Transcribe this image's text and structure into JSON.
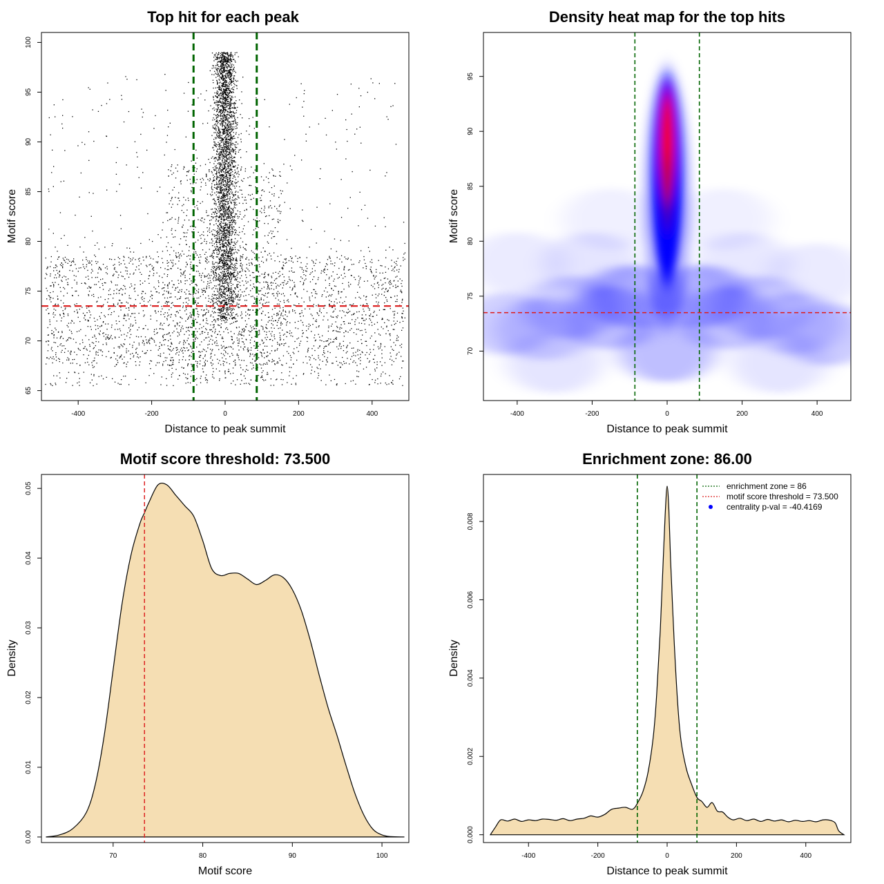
{
  "colors": {
    "background": "#ffffff",
    "points": "#000000",
    "enrichment_line": "#006400",
    "threshold_line": "#dd2222",
    "density_fill": "#f5deb3",
    "heat_low": "#ffffff",
    "heat_mid": "#0000ff",
    "heat_high": "#ff0000",
    "legend_point": "#0000ff"
  },
  "chart_data": [
    {
      "id": "scatter",
      "type": "scatter",
      "title": "Top hit for each peak",
      "xlabel": "Distance to peak summit",
      "ylabel": "Motif score",
      "xlim": [
        -500,
        500
      ],
      "ylim": [
        64,
        101
      ],
      "xticks": [
        -400,
        -200,
        0,
        200,
        400
      ],
      "yticks": [
        65,
        70,
        75,
        80,
        85,
        90,
        95,
        100
      ],
      "enrichment_zone": [
        -86,
        86
      ],
      "threshold": 73.5,
      "point_groups": [
        {
          "name": "central",
          "count": 3200,
          "x_mean": 0,
          "x_sd": 17,
          "y_range": [
            72,
            99
          ]
        },
        {
          "name": "shoulder",
          "count": 900,
          "x_range": [
            -160,
            160
          ],
          "y_range": [
            66,
            88
          ]
        },
        {
          "name": "background",
          "count": 2700,
          "x_range": [
            -490,
            490
          ],
          "y_range": [
            65.5,
            80
          ]
        },
        {
          "name": "background-high",
          "count": 250,
          "x_range": [
            -490,
            490
          ],
          "y_range": [
            80,
            97
          ]
        }
      ]
    },
    {
      "id": "heatmap",
      "type": "heatmap",
      "title": "Density heat map for the top hits",
      "xlabel": "Distance to peak summit",
      "ylabel": "Motif score",
      "xlim": [
        -490,
        490
      ],
      "ylim": [
        65.5,
        99
      ],
      "xticks": [
        -400,
        -200,
        0,
        200,
        400
      ],
      "yticks": [
        70,
        75,
        80,
        85,
        90,
        95
      ],
      "enrichment_zone": [
        -86,
        86
      ],
      "threshold": 73.5,
      "peak_center": {
        "x": 0,
        "y": 88.5
      },
      "color_scale": [
        "white",
        "blue",
        "red"
      ]
    },
    {
      "id": "score-density",
      "type": "area",
      "title": "Motif score threshold: 73.500",
      "xlabel": "Motif score",
      "ylabel": "Density",
      "xlim": [
        62,
        103
      ],
      "ylim": [
        -0.0008,
        0.052
      ],
      "xticks": [
        70,
        80,
        90,
        100
      ],
      "yticks": [
        0.0,
        0.01,
        0.02,
        0.03,
        0.04,
        0.05
      ],
      "ytick_labels": [
        "0.00",
        "0.01",
        "0.02",
        "0.03",
        "0.04",
        "0.05"
      ],
      "threshold": 73.5,
      "x": [
        62.5,
        64,
        65.5,
        67,
        68,
        69,
        70,
        71,
        72,
        73,
        73.5,
        74,
        75,
        76,
        77,
        78,
        79,
        80,
        81,
        82,
        83,
        84,
        85,
        86,
        87,
        88,
        89,
        90,
        91,
        92,
        93,
        94,
        95,
        96,
        97,
        98,
        99,
        100,
        101,
        102.5
      ],
      "y": [
        0.0,
        0.0003,
        0.0012,
        0.0035,
        0.0075,
        0.0145,
        0.024,
        0.0335,
        0.0405,
        0.045,
        0.0465,
        0.048,
        0.0505,
        0.0505,
        0.049,
        0.0475,
        0.046,
        0.0425,
        0.0385,
        0.0375,
        0.0378,
        0.0378,
        0.037,
        0.0362,
        0.0368,
        0.0376,
        0.0372,
        0.0355,
        0.0325,
        0.0282,
        0.0232,
        0.0185,
        0.0145,
        0.0102,
        0.0062,
        0.0031,
        0.0011,
        0.0003,
        5e-05,
        0.0
      ]
    },
    {
      "id": "distance-density",
      "type": "area",
      "title": "Enrichment zone: 86.00",
      "xlabel": "Distance to peak summit",
      "ylabel": "Density",
      "xlim": [
        -530,
        530
      ],
      "ylim": [
        -0.0002,
        0.0092
      ],
      "xticks": [
        -400,
        -200,
        0,
        200,
        400
      ],
      "yticks": [
        0.0,
        0.002,
        0.004,
        0.006,
        0.008
      ],
      "ytick_labels": [
        "0.000",
        "0.002",
        "0.004",
        "0.006",
        "0.008"
      ],
      "enrichment_zone": [
        -86,
        86
      ],
      "x": [
        -510,
        -495,
        -480,
        -460,
        -440,
        -420,
        -400,
        -380,
        -360,
        -340,
        -320,
        -300,
        -280,
        -260,
        -240,
        -220,
        -200,
        -180,
        -160,
        -140,
        -120,
        -100,
        -86,
        -70,
        -55,
        -40,
        -30,
        -20,
        -10,
        -5,
        0,
        5,
        10,
        20,
        30,
        40,
        55,
        70,
        86,
        100,
        115,
        130,
        145,
        160,
        175,
        190,
        210,
        230,
        250,
        270,
        290,
        310,
        330,
        350,
        370,
        390,
        410,
        430,
        450,
        470,
        485,
        495,
        510
      ],
      "y": [
        0.0,
        0.0002,
        0.00038,
        0.00035,
        0.0004,
        0.00034,
        0.00038,
        0.00036,
        0.0004,
        0.00039,
        0.00037,
        0.00041,
        0.00036,
        0.0004,
        0.00042,
        0.00048,
        0.00045,
        0.00052,
        0.00065,
        0.00068,
        0.0007,
        0.00065,
        0.0008,
        0.0011,
        0.0016,
        0.0025,
        0.0036,
        0.0052,
        0.0073,
        0.0083,
        0.0089,
        0.0083,
        0.007,
        0.005,
        0.0034,
        0.0024,
        0.0017,
        0.0013,
        0.00095,
        0.00085,
        0.0007,
        0.00082,
        0.0006,
        0.00058,
        0.00045,
        0.00038,
        0.00042,
        0.00036,
        0.0004,
        0.00034,
        0.00039,
        0.00035,
        0.00038,
        0.00033,
        0.00037,
        0.00034,
        0.00036,
        0.00033,
        0.00038,
        0.00037,
        0.0003,
        0.0001,
        0.0
      ],
      "legend": [
        {
          "label": "enrichment zone = 86",
          "marker": "green-dotted-line"
        },
        {
          "label": "motif score threshold = 73.500",
          "marker": "red-dotted-line"
        },
        {
          "label": "centrality p-val = -40.4169",
          "marker": "blue-point"
        }
      ]
    }
  ]
}
